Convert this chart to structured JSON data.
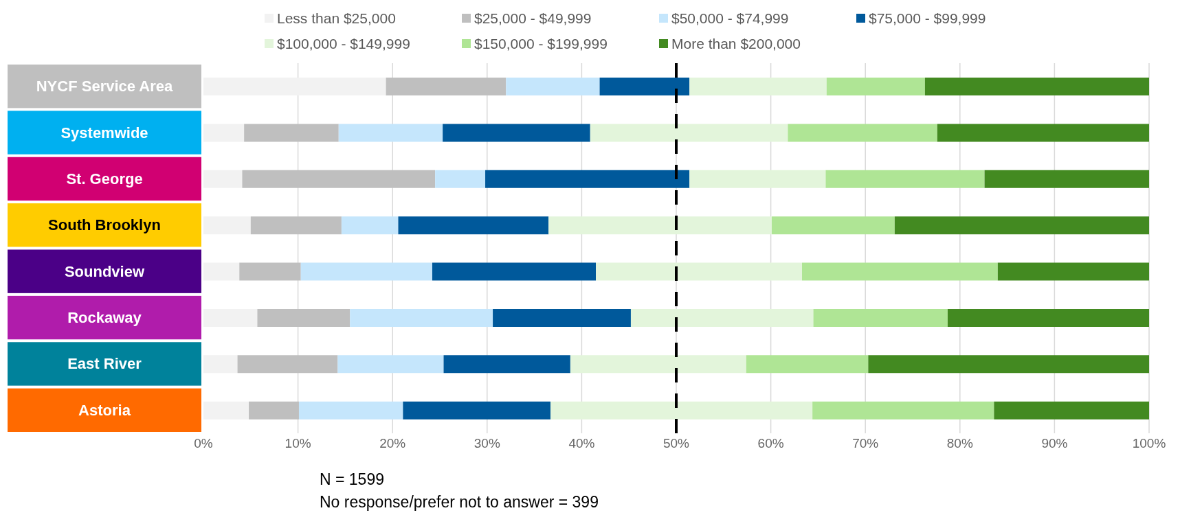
{
  "chart_data": {
    "type": "bar",
    "orientation": "horizontal",
    "stacked": true,
    "categories": [
      "NYCF Service Area",
      "Systemwide",
      "St. George",
      "South Brooklyn",
      "Soundview",
      "Rockaway",
      "East River",
      "Astoria"
    ],
    "series": [
      {
        "name": "Less than $25,000",
        "color": "#f2f2f2",
        "values": [
          19.3,
          4.3,
          4.1,
          5.0,
          3.8,
          5.7,
          3.6,
          4.8
        ]
      },
      {
        "name": "$25,000 - $49,999",
        "color": "#bfbfbf",
        "values": [
          12.7,
          10.0,
          20.4,
          9.6,
          6.5,
          9.8,
          10.6,
          5.3
        ]
      },
      {
        "name": "$50,000 - $74,999",
        "color": "#c5e6fc",
        "values": [
          9.9,
          11.0,
          5.3,
          6.0,
          13.9,
          15.1,
          11.2,
          11.0
        ]
      },
      {
        "name": "$75,000 - $99,999",
        "color": "#00599b",
        "values": [
          9.5,
          15.6,
          21.6,
          15.9,
          17.3,
          14.6,
          13.4,
          15.6
        ]
      },
      {
        "name": "$100,000 - $149,999",
        "color": "#e3f5db",
        "values": [
          14.5,
          20.9,
          14.4,
          23.6,
          21.8,
          19.3,
          18.6,
          27.7
        ]
      },
      {
        "name": "$150,000 - $199,999",
        "color": "#afe595",
        "values": [
          10.4,
          15.8,
          16.8,
          13.0,
          20.7,
          14.2,
          12.9,
          19.2
        ]
      },
      {
        "name": "More than $200,000",
        "color": "#438a21",
        "values": [
          23.7,
          22.4,
          17.4,
          26.9,
          16.0,
          21.3,
          29.7,
          16.4
        ]
      }
    ],
    "xlim": [
      0,
      100
    ],
    "xticks": [
      {
        "value": 0,
        "label": "0%"
      },
      {
        "value": 10,
        "label": "10%"
      },
      {
        "value": 20,
        "label": "20%"
      },
      {
        "value": 30,
        "label": "30%"
      },
      {
        "value": 40,
        "label": "40%"
      },
      {
        "value": 50,
        "label": "50%"
      },
      {
        "value": 60,
        "label": "60%"
      },
      {
        "value": 70,
        "label": "70%"
      },
      {
        "value": 80,
        "label": "80%"
      },
      {
        "value": 90,
        "label": "90%"
      },
      {
        "value": 100,
        "label": "100%"
      }
    ],
    "ref_lines": [
      {
        "axis": "x",
        "value": 50,
        "color": "#000000",
        "line_style": "dashed"
      }
    ],
    "grid": "x",
    "legend": "top",
    "annotations": [
      "N = 1599",
      "No response/prefer not to answer = 399"
    ]
  }
}
